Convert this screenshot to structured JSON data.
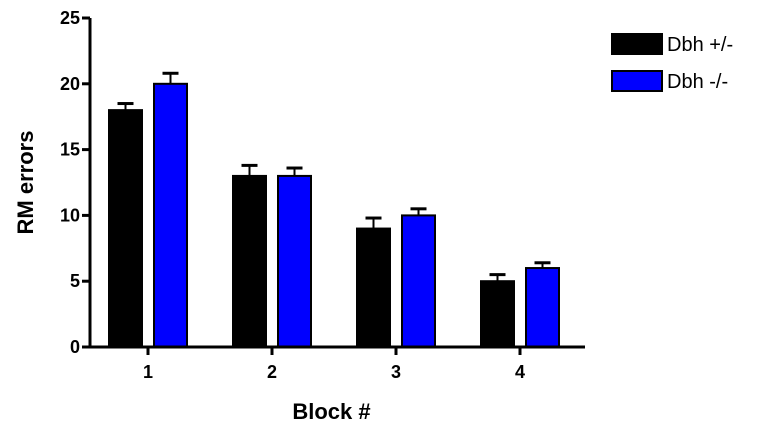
{
  "chart_data": {
    "type": "bar",
    "title": "",
    "xlabel": "Block #",
    "ylabel": "RM errors",
    "categories": [
      "1",
      "2",
      "3",
      "4"
    ],
    "ylim": [
      0,
      25
    ],
    "yticks": [
      0,
      5,
      10,
      15,
      20,
      25
    ],
    "grid": false,
    "legend_position": "top-right",
    "series": [
      {
        "name": "Dbh +/-",
        "color": "#000000",
        "values": [
          18,
          13,
          9,
          5
        ],
        "errors": [
          0.5,
          0.8,
          0.8,
          0.5
        ]
      },
      {
        "name": "Dbh -/-",
        "color": "#0000ff",
        "values": [
          20,
          13,
          10,
          6
        ],
        "errors": [
          0.8,
          0.6,
          0.5,
          0.4
        ]
      }
    ]
  }
}
